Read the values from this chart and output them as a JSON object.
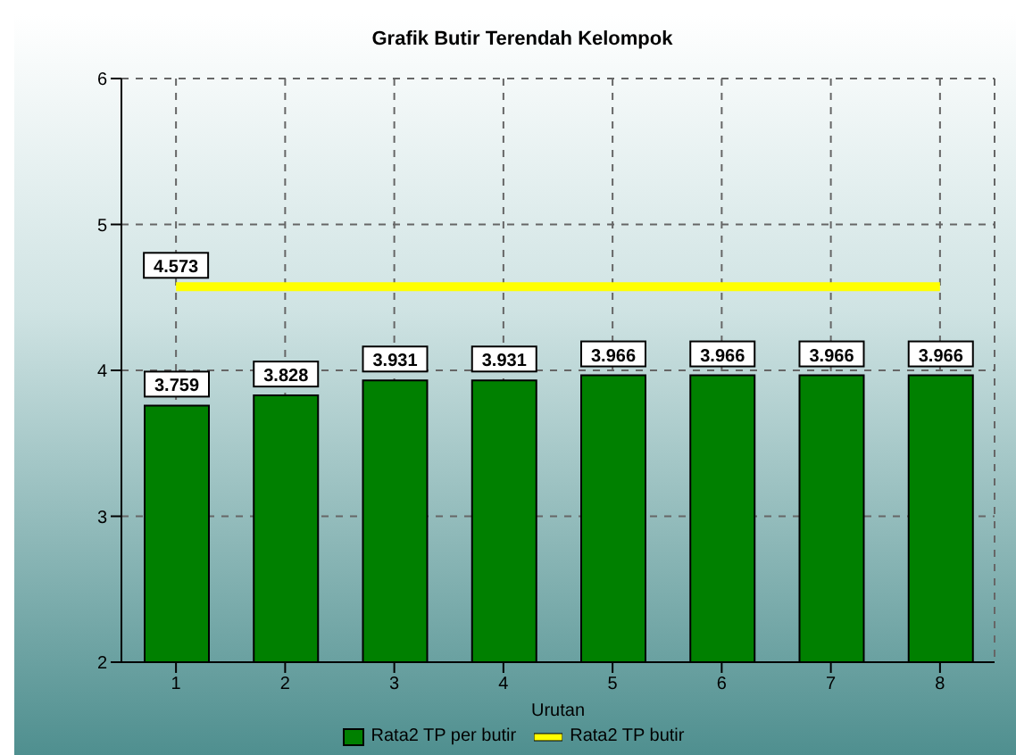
{
  "chart_data": {
    "type": "bar",
    "title": "Grafik Butir Terendah Kelompok",
    "xlabel": "Urutan",
    "categories": [
      "1",
      "2",
      "3",
      "4",
      "5",
      "6",
      "7",
      "8"
    ],
    "series": [
      {
        "name": "Rata2 TP per butir",
        "color": "#008000",
        "values": [
          3.759,
          3.828,
          3.931,
          3.931,
          3.966,
          3.966,
          3.966,
          3.966
        ],
        "value_labels": [
          "3.759",
          "3.828",
          "3.931",
          "3.931",
          "3.966",
          "3.966",
          "3.966",
          "3.966"
        ]
      },
      {
        "name": "Rata2 TP butir",
        "type": "line",
        "color": "#ffff00",
        "values": [
          4.573,
          4.573,
          4.573,
          4.573,
          4.573,
          4.573,
          4.573,
          4.573
        ],
        "value_labels": [
          "4.573",
          null,
          null,
          null,
          null,
          null,
          null,
          null
        ]
      }
    ],
    "ylim": [
      2,
      6
    ],
    "yticks": [
      2,
      3,
      4,
      5,
      6
    ],
    "grid": true,
    "legend": "bottom",
    "marker": "none"
  }
}
